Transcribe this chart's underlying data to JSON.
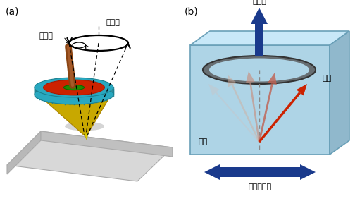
{
  "fig_width": 5.04,
  "fig_height": 3.09,
  "dpi": 100,
  "bg": "#ffffff",
  "t1": "鉛直軸",
  "t2": "回転軸",
  "t3": "静磁界",
  "t4": "磁化",
  "t5": "磁石",
  "t6": "高周波磁界",
  "lfs": 10,
  "jfs": 8
}
